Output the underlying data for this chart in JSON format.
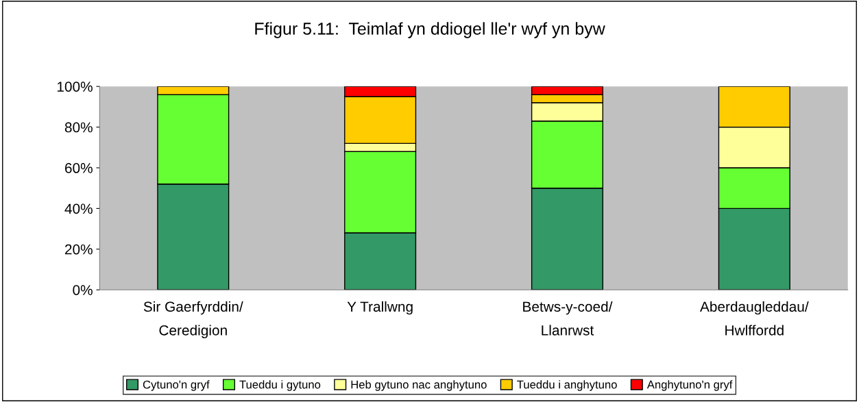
{
  "chart_data": {
    "type": "bar",
    "title": "Ffigur 5.11:  Teimlaf yn ddiogel lle'r wyf yn byw",
    "categories": [
      "Sir Gaerfyrddin/\nCeredigion",
      "Y Trallwng",
      "Betws-y-coed/\nLlanrwst",
      "Aberdaugleddau/\nHwlffordd"
    ],
    "stacked": true,
    "series": [
      {
        "name": "Cytuno'n gryf",
        "color": "#339966",
        "values": [
          52,
          28,
          50,
          40
        ]
      },
      {
        "name": "Tueddu i gytuno",
        "color": "#66ff33",
        "values": [
          44,
          40,
          33,
          20
        ]
      },
      {
        "name": "Heb gytuno nac anghytuno",
        "color": "#ffff99",
        "values": [
          null,
          4,
          9,
          20
        ]
      },
      {
        "name": "Tueddu i anghytuno",
        "color": "#ffcc00",
        "values": [
          4,
          23,
          4,
          20
        ]
      },
      {
        "name": "Anghytuno'n gryf",
        "color": "#ff0000",
        "values": [
          null,
          5,
          4,
          null
        ]
      }
    ],
    "ylim": [
      0,
      100
    ],
    "yticks": [
      {
        "value": 0,
        "label": "0%"
      },
      {
        "value": 20,
        "label": "20%"
      },
      {
        "value": 40,
        "label": "40%"
      },
      {
        "value": 60,
        "label": "60%"
      },
      {
        "value": 80,
        "label": "80%"
      },
      {
        "value": 100,
        "label": "100%"
      }
    ],
    "legend": "bottom"
  }
}
